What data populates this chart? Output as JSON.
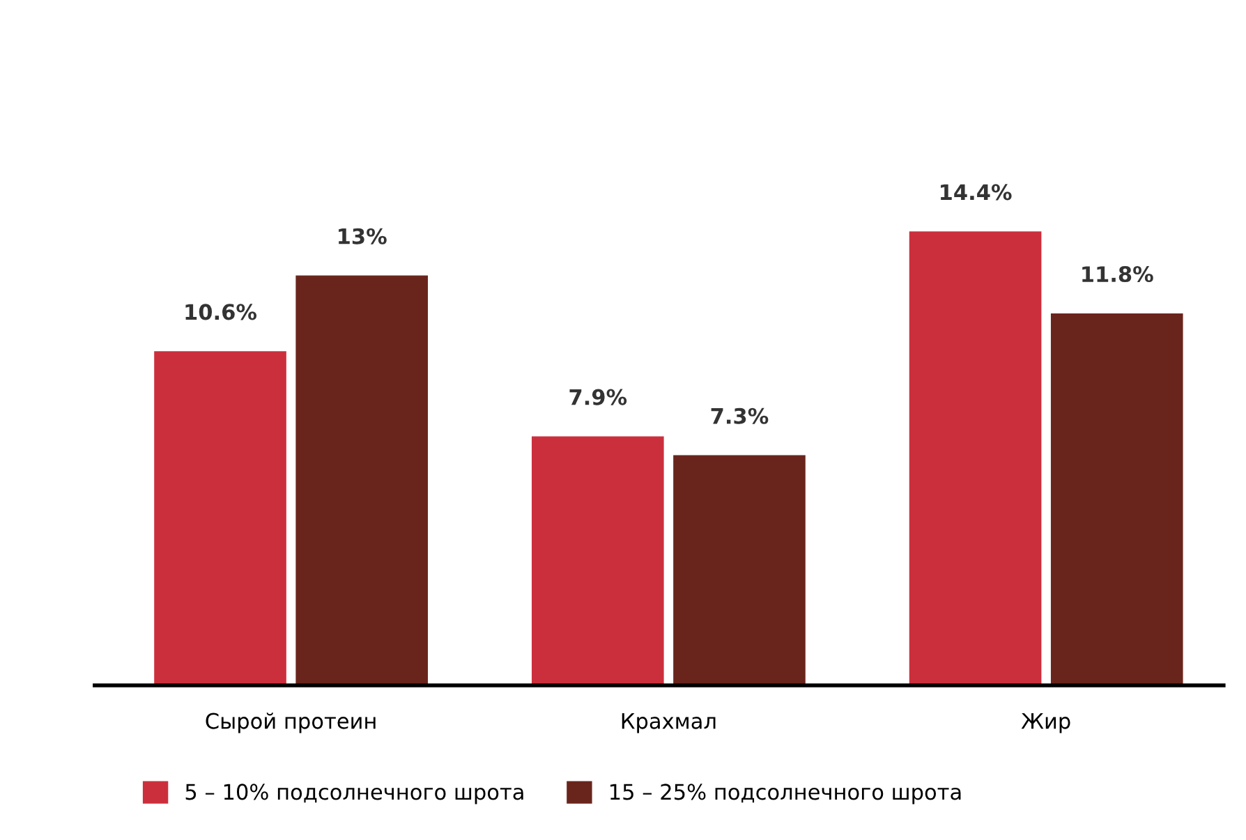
{
  "chart_data": {
    "type": "bar",
    "categories": [
      "Сырой протеин",
      "Крахмал",
      "Жир"
    ],
    "series": [
      {
        "name": "5 – 10% подсолнечного шрота",
        "color": "#cc2f3c",
        "values": [
          10.6,
          7.9,
          14.4
        ],
        "value_labels": [
          "10.6%",
          "7.9%",
          "14.4%"
        ]
      },
      {
        "name": "15 – 25% подсолнечного шрота",
        "color": "#69251c",
        "values": [
          13,
          7.3,
          11.8
        ],
        "value_labels": [
          "13%",
          "7.3%",
          "11.8%"
        ]
      }
    ],
    "grid": false,
    "legend": "bottom left"
  }
}
